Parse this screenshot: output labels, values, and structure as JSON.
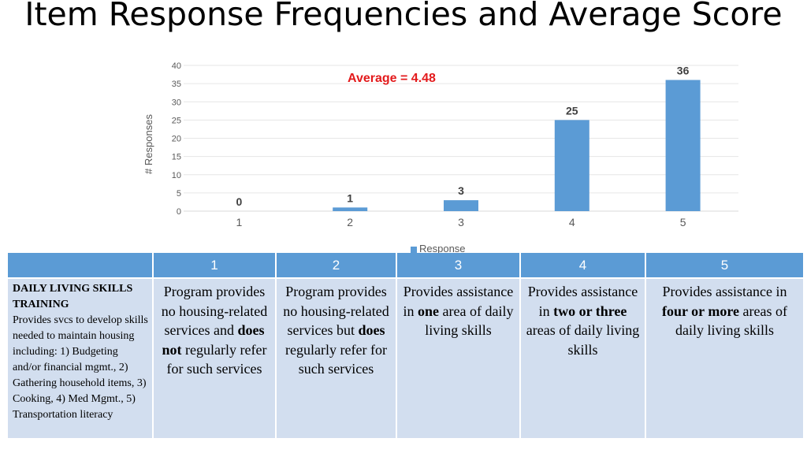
{
  "slide_title": "Item Response Frequencies and Average Score",
  "average_label": "Average = 4.48",
  "colors": {
    "bar": "#5b9bd5",
    "average": "#e31a1c",
    "header_bg": "#5b9bd5",
    "cell_bg": "#d2deef"
  },
  "chart_data": {
    "type": "bar",
    "categories": [
      "1",
      "2",
      "3",
      "4",
      "5"
    ],
    "series": [
      {
        "name": "Response",
        "values": [
          0,
          1,
          3,
          25,
          36
        ]
      }
    ],
    "xlabel": "",
    "ylabel": "# Responses",
    "ylim": [
      0,
      40
    ],
    "yticks": [
      0,
      5,
      10,
      15,
      20,
      25,
      30,
      35,
      40
    ],
    "grid": true,
    "legend": "bottom"
  },
  "table": {
    "headers": [
      "",
      "1",
      "2",
      "3",
      "4",
      "5"
    ],
    "first_cell": {
      "title": "DAILY LIVING SKILLS TRAINING",
      "body": "Provides svcs to develop skills needed to maintain housing including: 1) Budgeting and/or financial mgmt., 2) Gathering household items, 3) Cooking, 4) Med Mgmt., 5) Transportation literacy"
    },
    "cells": [
      [
        {
          "t": "Program provides no housing-related services and "
        },
        {
          "t": "does not",
          "b": true
        },
        {
          "t": " regularly refer for such services"
        }
      ],
      [
        {
          "t": "Program provides no housing-related services but "
        },
        {
          "t": "does",
          "b": true
        },
        {
          "t": " regularly refer for such services"
        }
      ],
      [
        {
          "t": "Provides assistance in "
        },
        {
          "t": "one",
          "b": true
        },
        {
          "t": " area of daily living skills"
        }
      ],
      [
        {
          "t": "Provides assistance in "
        },
        {
          "t": "two or three",
          "b": true
        },
        {
          "t": " areas of daily living skills"
        }
      ],
      [
        {
          "t": "Provides assistance in "
        },
        {
          "t": "four or more",
          "b": true
        },
        {
          "t": " areas of daily living skills"
        }
      ]
    ]
  }
}
